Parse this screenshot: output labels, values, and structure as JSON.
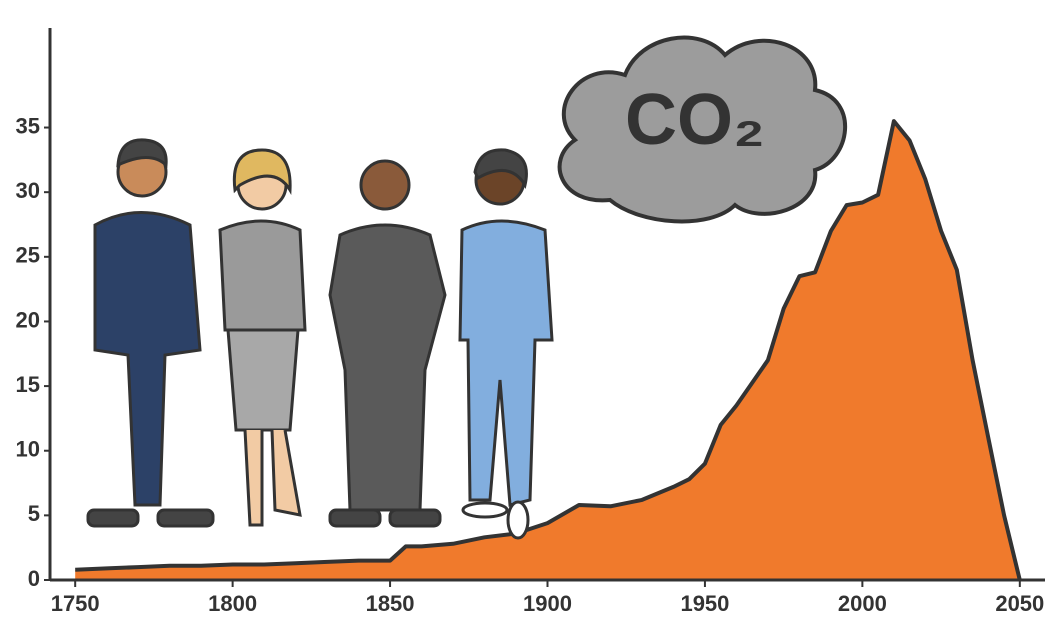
{
  "chart_data": {
    "type": "area",
    "annotation": "CO₂",
    "x": [
      1750,
      1760,
      1770,
      1780,
      1790,
      1800,
      1810,
      1820,
      1830,
      1840,
      1850,
      1855,
      1860,
      1870,
      1880,
      1890,
      1900,
      1910,
      1920,
      1930,
      1940,
      1945,
      1950,
      1955,
      1960,
      1970,
      1975,
      1980,
      1985,
      1990,
      1995,
      2000,
      2005,
      2010,
      2015,
      2020,
      2025,
      2030,
      2035,
      2040,
      2045,
      2050
    ],
    "values": [
      0.8,
      0.9,
      1.0,
      1.1,
      1.1,
      1.2,
      1.2,
      1.3,
      1.4,
      1.5,
      1.5,
      2.6,
      2.6,
      2.8,
      3.3,
      3.6,
      4.4,
      5.8,
      5.7,
      6.2,
      7.2,
      7.8,
      9.0,
      12.0,
      13.5,
      17.0,
      21.0,
      23.5,
      23.8,
      27.0,
      29.0,
      29.2,
      29.8,
      35.5,
      34.0,
      31.0,
      27.0,
      24.0,
      17.0,
      11.0,
      5.0,
      0
    ],
    "color": "#f07a2c",
    "xlim": [
      1742,
      2058
    ],
    "xticks": [
      1750,
      1800,
      1850,
      1900,
      1950,
      2000,
      2050
    ],
    "ylim": [
      0,
      42.7
    ],
    "yticks": [
      0,
      5,
      10,
      15,
      20,
      25,
      30,
      35
    ]
  }
}
